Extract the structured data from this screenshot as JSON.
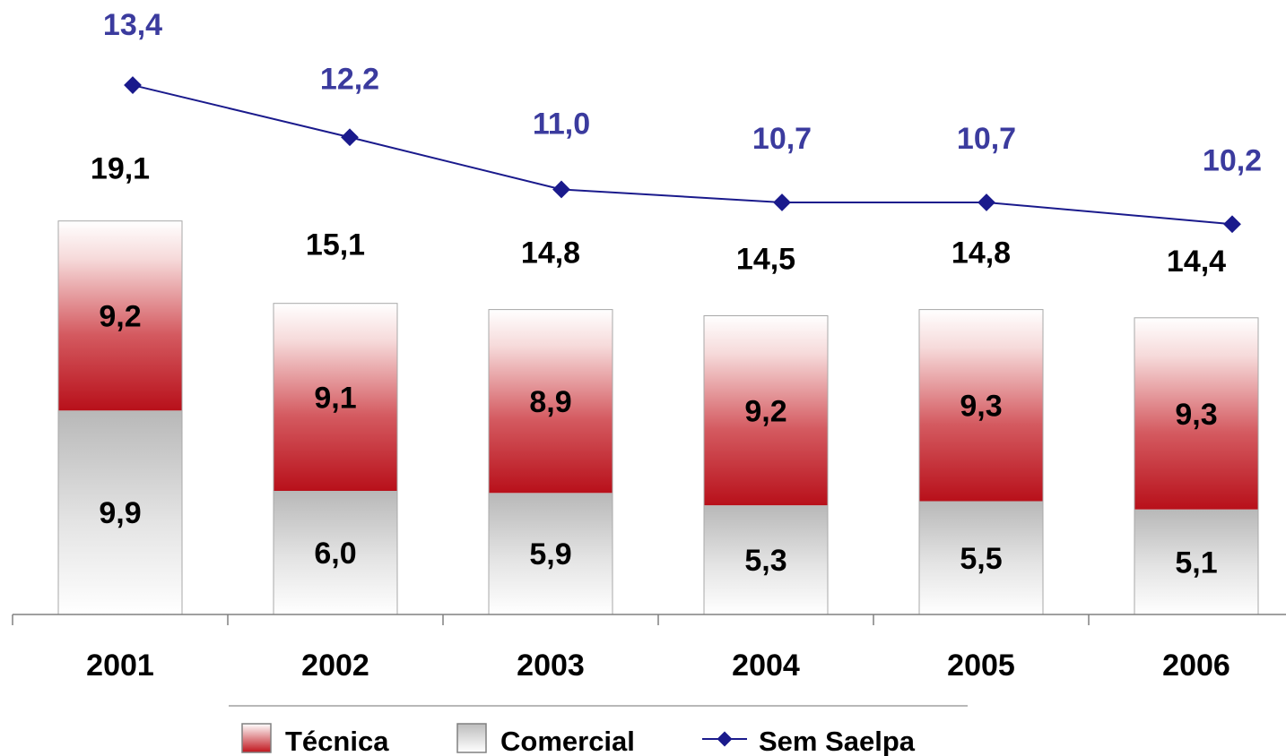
{
  "chart_data": {
    "type": "bar",
    "stacked": true,
    "categories": [
      "2001",
      "2002",
      "2003",
      "2004",
      "2005",
      "2006"
    ],
    "series": [
      {
        "name": "Comercial",
        "values": [
          9.9,
          6.0,
          5.9,
          5.3,
          5.5,
          5.1
        ],
        "labels": [
          "9,9",
          "6,0",
          "5,9",
          "5,3",
          "5,5",
          "5,1"
        ],
        "color": "#c8c8c8"
      },
      {
        "name": "Técnica",
        "values": [
          9.2,
          9.1,
          8.9,
          9.2,
          9.3,
          9.3
        ],
        "labels": [
          "9,2",
          "9,1",
          "8,9",
          "9,2",
          "9,3",
          "9,3"
        ],
        "color": "#c0141c"
      }
    ],
    "totals": [
      19.1,
      15.1,
      14.8,
      14.5,
      14.8,
      14.4
    ],
    "total_labels": [
      "19,1",
      "15,1",
      "14,8",
      "14,5",
      "14,8",
      "14,4"
    ],
    "line_series": {
      "name": "Sem Saelpa",
      "type": "line",
      "values": [
        13.4,
        12.2,
        11.0,
        10.7,
        10.7,
        10.2
      ],
      "labels": [
        "13,4",
        "12,2",
        "11,0",
        "10,7",
        "10,7",
        "10,2"
      ],
      "color": "#1a1a8c",
      "label_color": "#3b3b9e",
      "marker": "diamond"
    },
    "ylim": [
      0,
      20
    ],
    "grid": false,
    "legend": {
      "position": "bottom",
      "entries": [
        "Técnica",
        "Comercial",
        "Sem Saelpa"
      ]
    }
  }
}
